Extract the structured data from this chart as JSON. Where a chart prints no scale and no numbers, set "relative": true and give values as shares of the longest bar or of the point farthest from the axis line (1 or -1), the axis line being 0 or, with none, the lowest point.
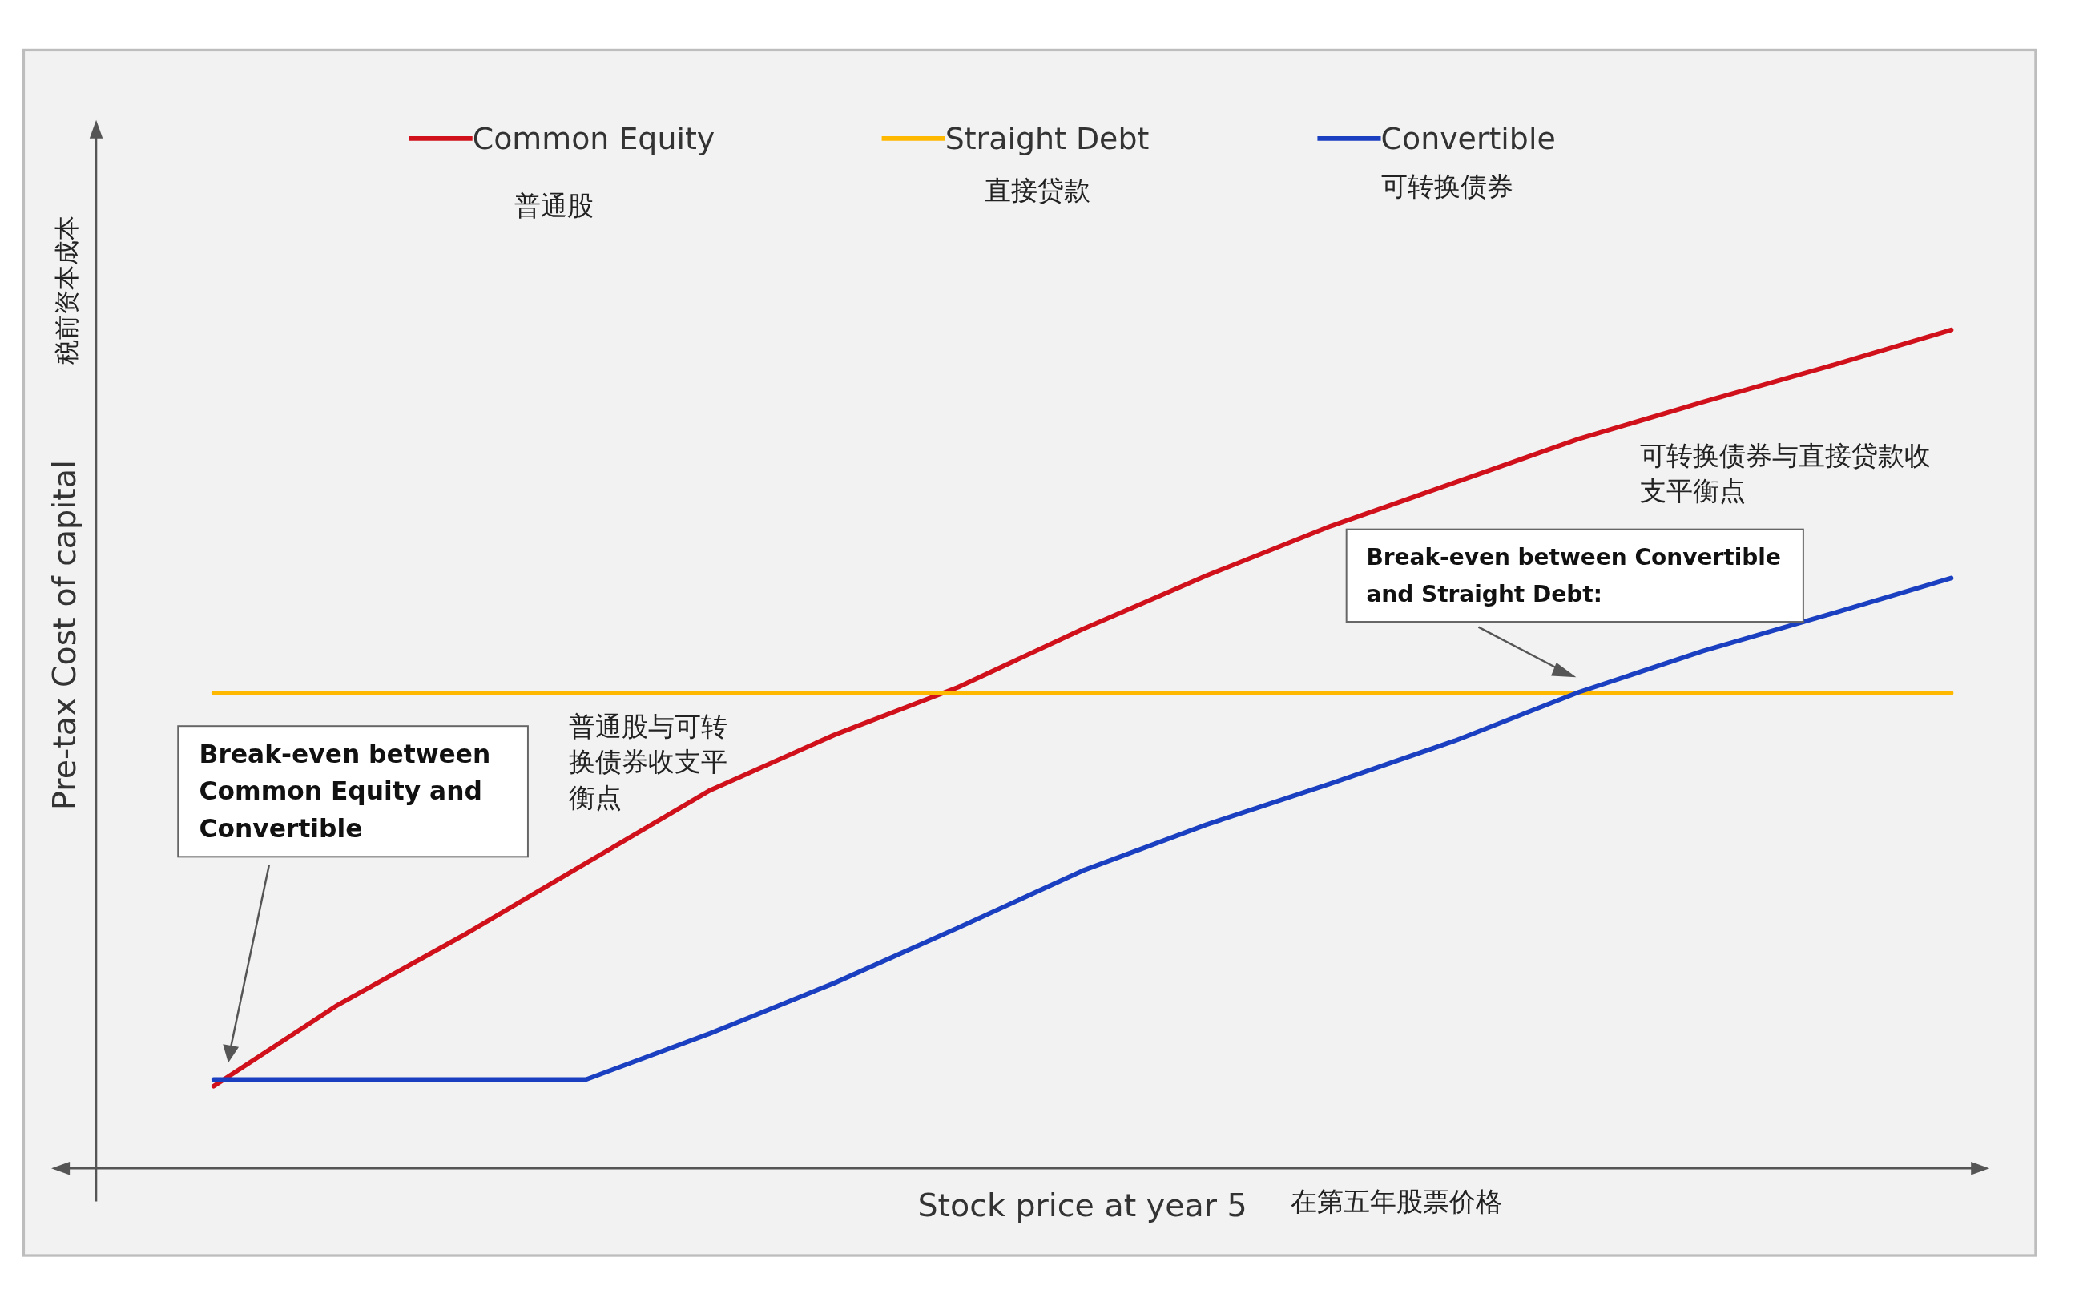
{
  "chart_data": {
    "type": "line",
    "relative": true,
    "xlabel": "Stock price at year 5",
    "ylabel": "Pre-tax Cost of capital",
    "legend": "top",
    "marker": "none",
    "line_style": "solid",
    "categories": [
      null,
      null,
      null,
      null,
      null,
      null,
      null,
      null,
      null,
      null,
      null,
      null,
      null,
      null,
      null
    ],
    "series": [
      {
        "name": "Common Equity",
        "color": "#d0101a",
        "values": [
          0.098,
          0.195,
          0.277,
          0.364,
          0.451,
          0.517,
          0.574,
          0.643,
          0.707,
          0.766,
          0.818,
          0.87,
          0.914,
          0.956,
          1
        ]
      },
      {
        "name": "Straight Debt",
        "color": "#ffb800",
        "values": [
          0.567,
          0.567,
          0.567,
          0.567,
          0.567,
          0.567,
          0.567,
          0.567,
          0.567,
          0.567,
          0.567,
          0.567,
          0.567,
          0.567,
          0.567
        ]
      },
      {
        "name": "Convertible",
        "color": "#1a3fc0",
        "values": [
          0.106,
          0.106,
          0.106,
          0.106,
          0.161,
          0.221,
          0.287,
          0.355,
          0.41,
          0.459,
          0.51,
          0.568,
          0.617,
          0.66,
          0.704
        ]
      }
    ],
    "annotations": [
      "普通股",
      "直接贷款",
      "可转换债券",
      "税前资本成本",
      "在第五年股票价格",
      "普通股与可转换债券收支平衡点",
      "可转换债券与直接贷款收支平衡点",
      "Break-even between Common Equity and Convertible",
      "Break-even between Convertible and Straight Debt:"
    ]
  }
}
